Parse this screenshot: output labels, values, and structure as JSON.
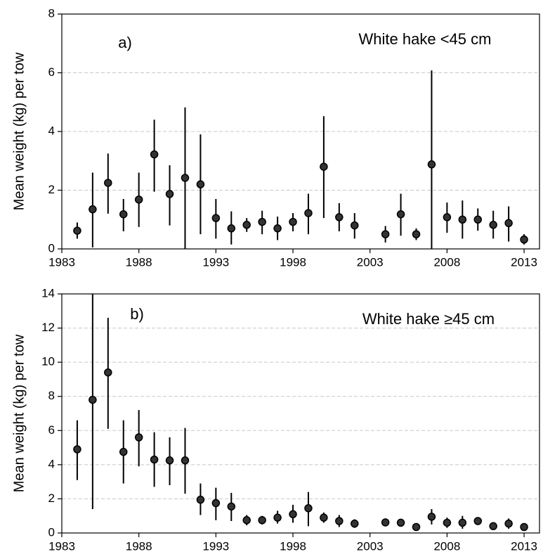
{
  "chart_data": [
    {
      "type": "scatter",
      "panel_label": "a)",
      "title": "White hake <45 cm",
      "y_label": "Mean weight (kg) per tow",
      "x": [
        1984,
        1985,
        1986,
        1987,
        1988,
        1989,
        1990,
        1991,
        1992,
        1993,
        1994,
        1995,
        1996,
        1997,
        1998,
        1999,
        2000,
        2001,
        2002,
        2004,
        2005,
        2006,
        2007,
        2008,
        2009,
        2010,
        2011,
        2012,
        2013
      ],
      "values": [
        0.62,
        1.35,
        2.25,
        1.18,
        1.68,
        3.22,
        1.87,
        2.42,
        2.2,
        1.05,
        0.7,
        0.82,
        0.92,
        0.7,
        0.92,
        1.22,
        2.8,
        1.08,
        0.8,
        0.5,
        1.18,
        0.5,
        2.88,
        1.08,
        1.0,
        1.0,
        0.82,
        0.88,
        0.32
      ],
      "low": [
        0.35,
        0.05,
        1.2,
        0.6,
        0.75,
        1.95,
        0.8,
        0,
        0.5,
        0.35,
        0.15,
        0.58,
        0.5,
        0.3,
        0.6,
        0.5,
        1.05,
        0.6,
        0.35,
        0.22,
        0.45,
        0.3,
        0,
        0.55,
        0.35,
        0.62,
        0.35,
        0.25,
        0.15
      ],
      "high": [
        0.9,
        2.6,
        3.25,
        1.7,
        2.6,
        4.4,
        2.85,
        4.82,
        3.9,
        1.7,
        1.28,
        1.05,
        1.3,
        1.1,
        1.22,
        1.88,
        4.52,
        1.56,
        1.22,
        0.78,
        1.88,
        0.7,
        6.08,
        1.58,
        1.65,
        1.38,
        1.3,
        1.45,
        0.5
      ],
      "color": "#333333",
      "xlim": [
        1983,
        2014
      ],
      "xticks": [
        1983,
        1988,
        1993,
        1998,
        2003,
        2008,
        2013
      ],
      "ylim": [
        0,
        8
      ],
      "yticks": [
        0,
        2,
        4,
        6,
        8
      ],
      "grid": true
    },
    {
      "type": "scatter",
      "panel_label": "b)",
      "title": "White hake ≥45 cm",
      "y_label": "Mean weight (kg) per tow",
      "x": [
        1984,
        1985,
        1986,
        1987,
        1988,
        1989,
        1990,
        1991,
        1992,
        1993,
        1994,
        1995,
        1996,
        1997,
        1998,
        1999,
        2000,
        2001,
        2002,
        2004,
        2005,
        2006,
        2007,
        2008,
        2009,
        2010,
        2011,
        2012,
        2013
      ],
      "values": [
        4.9,
        7.8,
        9.4,
        4.75,
        5.6,
        4.3,
        4.25,
        4.25,
        1.95,
        1.75,
        1.55,
        0.75,
        0.75,
        0.9,
        1.1,
        1.45,
        0.9,
        0.7,
        0.55,
        0.62,
        0.6,
        0.35,
        0.95,
        0.6,
        0.6,
        0.7,
        0.4,
        0.55,
        0.35
      ],
      "low": [
        3.1,
        1.4,
        6.1,
        2.9,
        3.9,
        2.7,
        2.8,
        2.3,
        1.05,
        0.75,
        0.7,
        0.45,
        0.5,
        0.55,
        0.6,
        0.4,
        0.6,
        0.35,
        0.3,
        0.4,
        0.4,
        0.25,
        0.5,
        0.3,
        0.25,
        0.5,
        0.25,
        0.25,
        0.15
      ],
      "high": [
        6.6,
        14,
        12.6,
        6.6,
        7.2,
        5.9,
        5.6,
        6.15,
        2.9,
        2.65,
        2.35,
        1.05,
        1.0,
        1.3,
        1.65,
        2.4,
        1.2,
        1.05,
        0.8,
        0.85,
        0.8,
        0.45,
        1.4,
        0.9,
        1.0,
        0.9,
        0.55,
        0.85,
        0.55
      ],
      "color": "#333333",
      "xlim": [
        1983,
        2014
      ],
      "xticks": [
        1983,
        1988,
        1993,
        1998,
        2003,
        2008,
        2013
      ],
      "ylim": [
        0,
        14
      ],
      "yticks": [
        0,
        2,
        4,
        6,
        8,
        10,
        12,
        14
      ],
      "grid": true
    }
  ]
}
